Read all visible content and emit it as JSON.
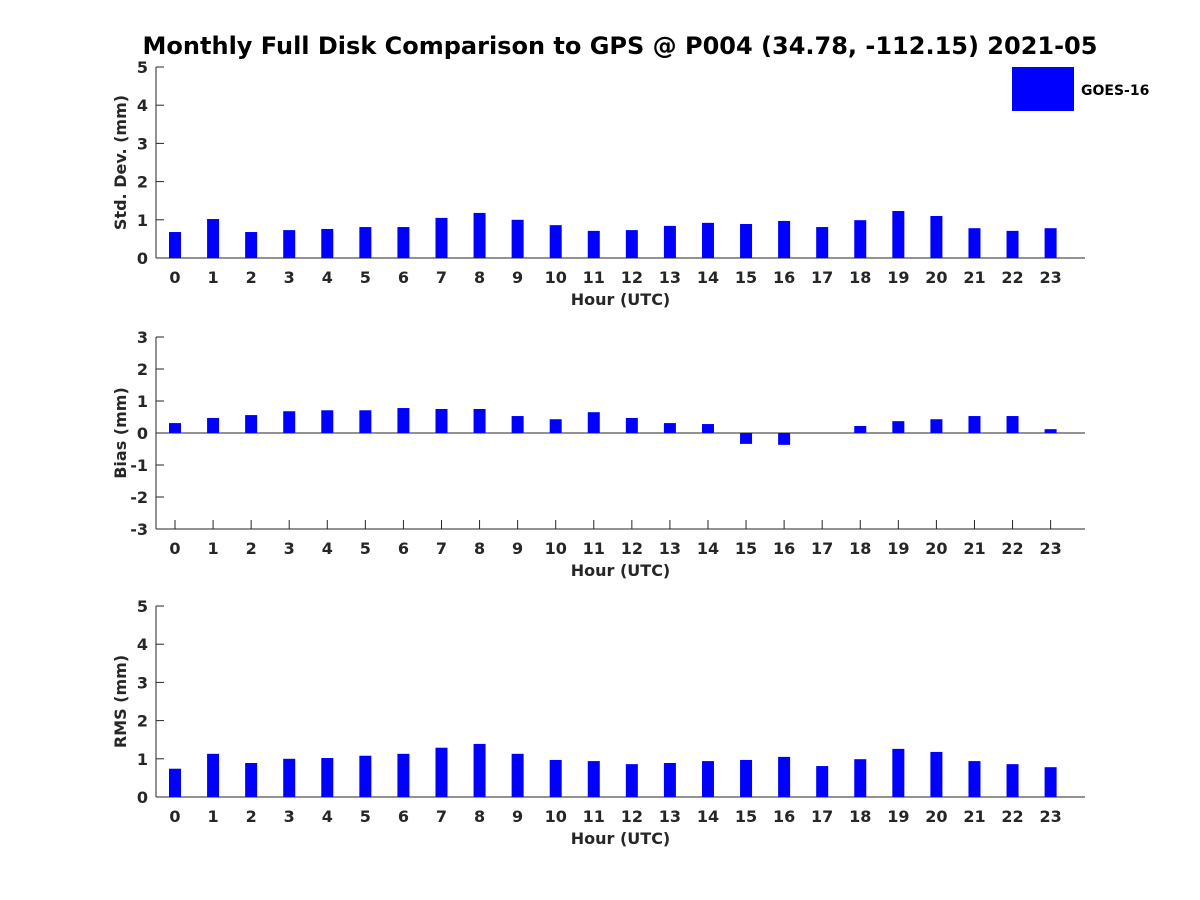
{
  "title": "Monthly Full Disk Comparison to GPS @ P004 (34.78, -112.15) 2021-05",
  "legend": {
    "label": "GOES-16",
    "color": "#0000ff",
    "placement": "top-right"
  },
  "chart_data": [
    {
      "type": "bar",
      "xlabel": "Hour (UTC)",
      "ylabel": "Std. Dev. (mm)",
      "ylim": [
        0,
        5
      ],
      "yticks": [
        "0",
        "1",
        "2",
        "3",
        "4",
        "5"
      ],
      "categories": [
        "0",
        "1",
        "2",
        "3",
        "4",
        "5",
        "6",
        "7",
        "8",
        "9",
        "10",
        "11",
        "12",
        "13",
        "14",
        "15",
        "16",
        "17",
        "18",
        "19",
        "20",
        "21",
        "22",
        "23"
      ],
      "series": [
        {
          "name": "GOES-16",
          "values": [
            0.68,
            1.02,
            0.68,
            0.73,
            0.76,
            0.81,
            0.81,
            1.05,
            1.18,
            1.0,
            0.86,
            0.71,
            0.73,
            0.84,
            0.92,
            0.89,
            0.97,
            0.81,
            0.99,
            1.23,
            1.1,
            0.78,
            0.71,
            0.78
          ]
        }
      ]
    },
    {
      "type": "bar",
      "xlabel": "Hour (UTC)",
      "ylabel": "Bias (mm)",
      "ylim": [
        -3,
        3
      ],
      "yticks": [
        "-3",
        "-2",
        "-1",
        "0",
        "1",
        "2",
        "3"
      ],
      "categories": [
        "0",
        "1",
        "2",
        "3",
        "4",
        "5",
        "6",
        "7",
        "8",
        "9",
        "10",
        "11",
        "12",
        "13",
        "14",
        "15",
        "16",
        "17",
        "18",
        "19",
        "20",
        "21",
        "22",
        "23"
      ],
      "series": [
        {
          "name": "GOES-16",
          "values": [
            0.31,
            0.47,
            0.56,
            0.68,
            0.71,
            0.71,
            0.78,
            0.75,
            0.75,
            0.53,
            0.43,
            0.65,
            0.47,
            0.31,
            0.28,
            -0.34,
            -0.37,
            0.0,
            0.22,
            0.37,
            0.43,
            0.53,
            0.53,
            0.12
          ]
        }
      ]
    },
    {
      "type": "bar",
      "xlabel": "Hour (UTC)",
      "ylabel": "RMS (mm)",
      "ylim": [
        0,
        5
      ],
      "yticks": [
        "0",
        "1",
        "2",
        "3",
        "4",
        "5"
      ],
      "categories": [
        "0",
        "1",
        "2",
        "3",
        "4",
        "5",
        "6",
        "7",
        "8",
        "9",
        "10",
        "11",
        "12",
        "13",
        "14",
        "15",
        "16",
        "17",
        "18",
        "19",
        "20",
        "21",
        "22",
        "23"
      ],
      "series": [
        {
          "name": "GOES-16",
          "values": [
            0.74,
            1.13,
            0.89,
            1.0,
            1.02,
            1.08,
            1.13,
            1.29,
            1.39,
            1.13,
            0.97,
            0.94,
            0.86,
            0.89,
            0.94,
            0.97,
            1.05,
            0.81,
            0.99,
            1.26,
            1.18,
            0.94,
            0.86,
            0.78
          ]
        }
      ]
    }
  ]
}
